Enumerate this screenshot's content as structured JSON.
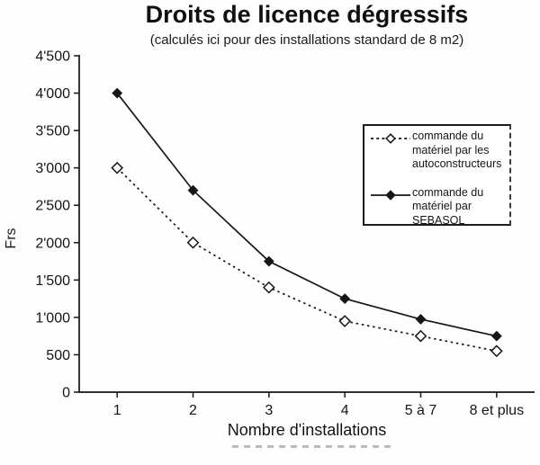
{
  "chart_data": {
    "type": "line",
    "title": "Droits de licence dégressifs",
    "subtitle": "(calculés ici pour des installations standard de 8 m2)",
    "xlabel": "Nombre d'installations",
    "ylabel": "Frs",
    "categories": [
      "1",
      "2",
      "3",
      "4",
      "5 à 7",
      "8 et plus"
    ],
    "series": [
      {
        "name": "commande du matériel par les autoconstructeurs",
        "line": "dotted",
        "marker": "open-diamond",
        "values": [
          3000,
          2000,
          1400,
          950,
          750,
          550
        ]
      },
      {
        "name": "commande du matériel par SEBASOL",
        "line": "solid",
        "marker": "filled-diamond",
        "values": [
          4000,
          2700,
          1750,
          1250,
          975,
          750
        ]
      }
    ],
    "ylim": [
      0,
      4500
    ],
    "ytick_step": 500,
    "ytick_labels": [
      "0",
      "500",
      "1'000",
      "1'500",
      "2'000",
      "2'500",
      "3'000",
      "3'500",
      "4'000",
      "4'500"
    ],
    "grid": false,
    "legend_position": "inside-right",
    "ink_color": "#161616"
  }
}
